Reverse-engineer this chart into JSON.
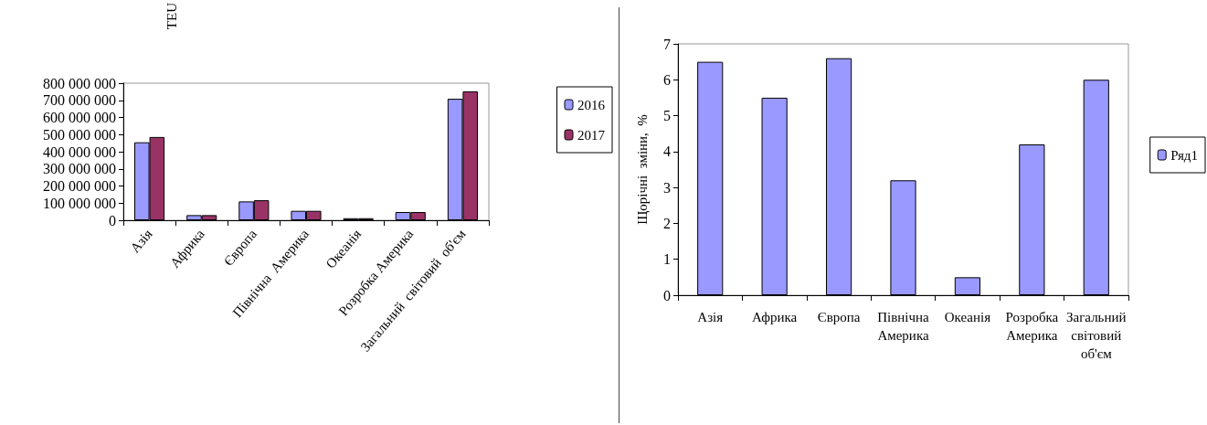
{
  "chart_data": [
    {
      "type": "bar",
      "ylabel": "TEU",
      "categories": [
        "Азія",
        "Африка",
        "Європа",
        "Північна  Америка",
        "Океанія",
        "Розробка Америка",
        "Загальний  світовий  об'єм"
      ],
      "series": [
        {
          "name": "2016",
          "color": "#9999ff",
          "values": [
            455000000,
            30000000,
            110000000,
            55000000,
            12000000,
            48000000,
            709000000
          ]
        },
        {
          "name": "2017",
          "color": "#993366",
          "values": [
            486000000,
            30000000,
            117000000,
            55000000,
            12000000,
            48000000,
            752000000
          ]
        }
      ],
      "ylim": [
        0,
        800000000
      ],
      "yticks": [
        {
          "value": 0,
          "label": "0"
        },
        {
          "value": 100000000,
          "label": "100 000 000"
        },
        {
          "value": 200000000,
          "label": "200 000 000"
        },
        {
          "value": 300000000,
          "label": "300 000 000"
        },
        {
          "value": 400000000,
          "label": "400 000 000"
        },
        {
          "value": 500000000,
          "label": "500 000 000"
        },
        {
          "value": 600000000,
          "label": "600 000 000"
        },
        {
          "value": 700000000,
          "label": "700 000 000"
        },
        {
          "value": 800000000,
          "label": "800 000 000"
        }
      ],
      "grid": false,
      "legend": "right"
    },
    {
      "type": "bar",
      "ylabel": "Щорічні  зміни,  %",
      "categories": [
        "Азія",
        "Африка",
        "Європа",
        "Північна Америка",
        "Океанія",
        "Розробка Америка",
        "Загальний світовий об'єм"
      ],
      "series": [
        {
          "name": "Ряд1",
          "color": "#9999ff",
          "values": [
            6.5,
            5.5,
            6.6,
            3.2,
            0.5,
            4.2,
            6.0
          ]
        }
      ],
      "ylim": [
        0,
        7
      ],
      "yticks": [
        0,
        1,
        2,
        3,
        4,
        5,
        6,
        7
      ],
      "grid": false,
      "legend": "right"
    }
  ]
}
